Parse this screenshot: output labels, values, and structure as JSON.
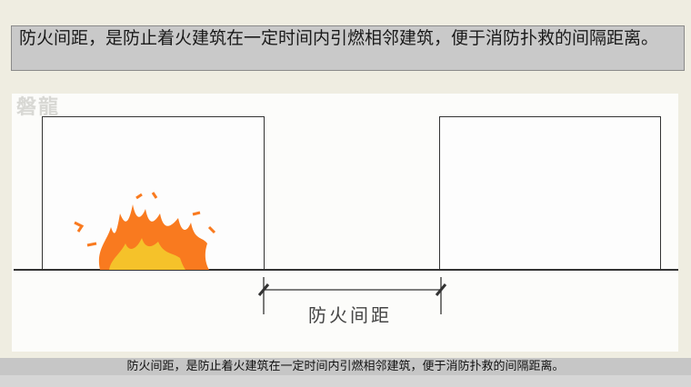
{
  "slide": {
    "title": "防火间距，是防止着火建筑在一定时间内引燃相邻建筑，便于消防扑救的间隔距离。",
    "watermark": "磐龍"
  },
  "diagram": {
    "dimension_label": "防火间距",
    "colors": {
      "flame_outer": "#f97a1f",
      "flame_inner": "#f5c22a",
      "line": "#333333"
    }
  },
  "subtitle": {
    "text": "防火间距，是防止着火建筑在一定时间内引燃相邻建筑，便于消防扑救的间隔距离。"
  }
}
